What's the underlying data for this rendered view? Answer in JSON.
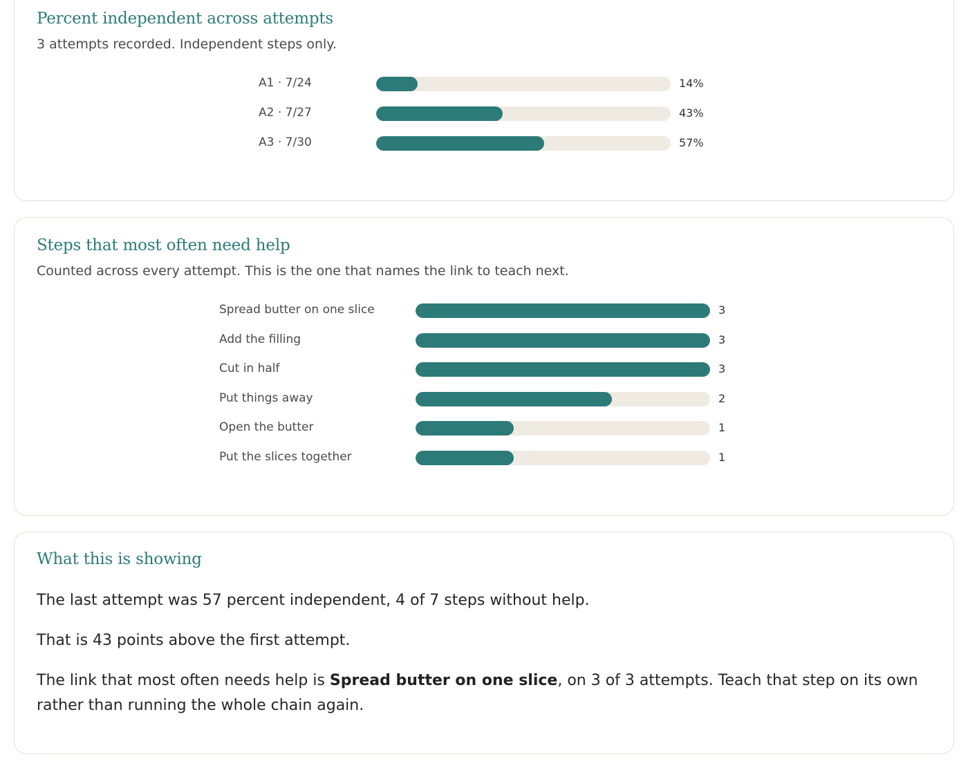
{
  "colors": {
    "accent": "#2c7c79",
    "bar_fill": "#2d7b78",
    "bar_track": "#f0ebe2",
    "border": "#e3e0d8"
  },
  "independence_card": {
    "title": "Percent independent across attempts",
    "subtitle": "3 attempts recorded. Independent steps only."
  },
  "help_card": {
    "title": "Steps that most often need help",
    "subtitle": "Counted across every attempt. This is the one that names the link to teach next."
  },
  "summary_card": {
    "title": "What this is showing",
    "line1": "The last attempt was 57 percent independent, 4 of 7 steps without help.",
    "line2": "That is 43 points above the first attempt.",
    "line3_before": "The link that most often needs help is ",
    "line3_bold": "Spread butter on one slice",
    "line3_after": ", on 3 of 3 attempts. Teach that step on its own rather than running the whole chain again."
  },
  "chart_data": [
    {
      "type": "bar",
      "orientation": "horizontal",
      "categories": [
        "A1 · 7/24",
        "A2 · 7/27",
        "A3 · 7/30"
      ],
      "values": [
        14,
        43,
        57
      ],
      "value_labels": [
        "14%",
        "43%",
        "57%"
      ],
      "xlim": [
        0,
        100
      ]
    },
    {
      "type": "bar",
      "orientation": "horizontal",
      "categories": [
        "Spread butter on one slice",
        "Add the filling",
        "Cut in half",
        "Put things away",
        "Open the butter",
        "Put the slices together"
      ],
      "values": [
        3,
        3,
        3,
        2,
        1,
        1
      ],
      "value_labels": [
        "3",
        "3",
        "3",
        "2",
        "1",
        "1"
      ],
      "xlim": [
        0,
        3
      ]
    }
  ]
}
